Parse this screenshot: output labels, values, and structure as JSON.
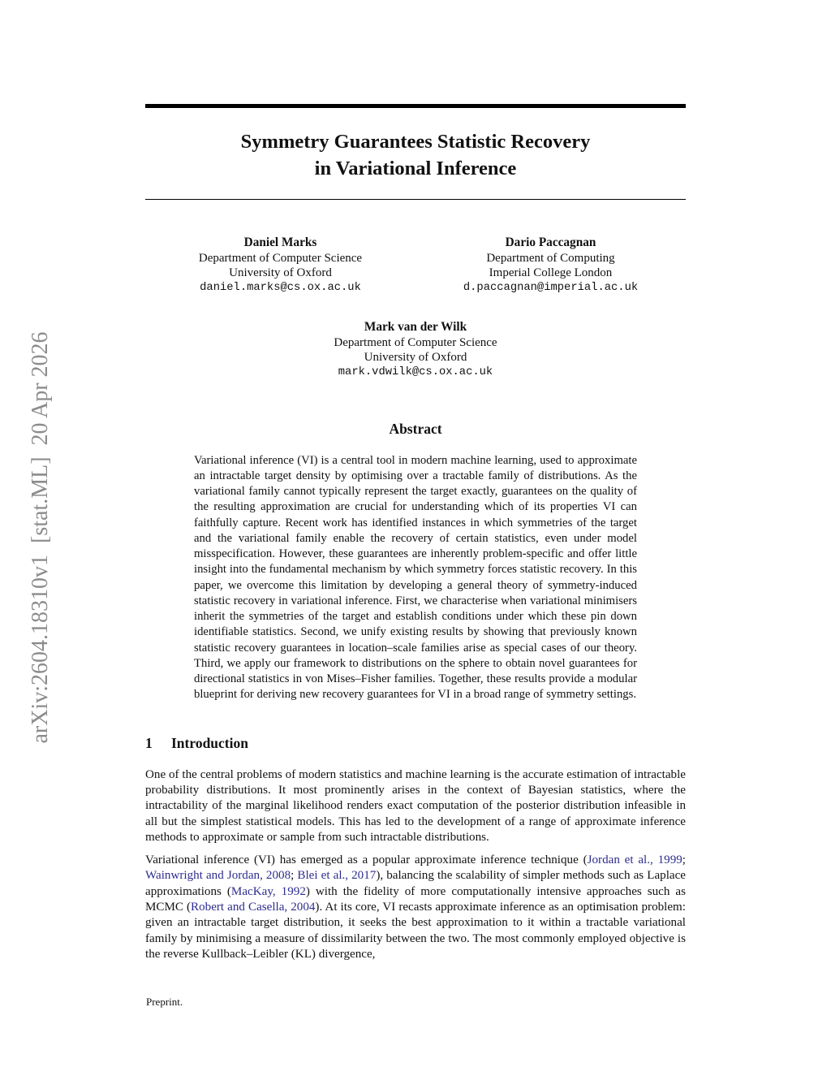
{
  "colors": {
    "link": "#2d2d8f",
    "sidebar_text": "#8c8c8c",
    "rule": "#000000"
  },
  "sidebar": {
    "arxiv_label": "arXiv:2604.18310v1  [stat.ML]  20 Apr 2026"
  },
  "title": {
    "line1": "Symmetry Guarantees Statistic Recovery",
    "line2": "in Variational Inference"
  },
  "authors": [
    {
      "name": "Daniel Marks",
      "affil1": "Department of Computer Science",
      "affil2": "University of Oxford",
      "email": "daniel.marks@cs.ox.ac.uk"
    },
    {
      "name": "Dario Paccagnan",
      "affil1": "Department of Computing",
      "affil2": "Imperial College London",
      "email": "d.paccagnan@imperial.ac.uk"
    },
    {
      "name": "Mark van der Wilk",
      "affil1": "Department of Computer Science",
      "affil2": "University of Oxford",
      "email": "mark.vdwilk@cs.ox.ac.uk"
    }
  ],
  "abstract": {
    "heading": "Abstract",
    "text": "Variational inference (VI) is a central tool in modern machine learning, used to approximate an intractable target density by optimising over a tractable family of distributions. As the variational family cannot typically represent the target exactly, guarantees on the quality of the resulting approximation are crucial for understanding which of its properties VI can faithfully capture. Recent work has identified instances in which symmetries of the target and the variational family enable the recovery of certain statistics, even under model misspecification. However, these guarantees are inherently problem-specific and offer little insight into the fundamental mechanism by which symmetry forces statistic recovery. In this paper, we overcome this limitation by developing a general theory of symmetry-induced statistic recovery in variational inference. First, we characterise when variational minimisers inherit the symmetries of the target and establish conditions under which these pin down identifiable statistics. Second, we unify existing results by showing that previously known statistic recovery guarantees in location–scale families arise as special cases of our theory. Third, we apply our framework to distributions on the sphere to obtain novel guarantees for directional statistics in von Mises–Fisher families. Together, these results provide a modular blueprint for deriving new recovery guarantees for VI in a broad range of symmetry settings."
  },
  "introduction": {
    "heading_number": "1",
    "heading_text": "Introduction",
    "para1": "One of the central problems of modern statistics and machine learning is the accurate estimation of intractable probability distributions. It most prominently arises in the context of Bayesian statistics, where the intractability of the marginal likelihood renders exact computation of the posterior distribution infeasible in all but the simplest statistical models. This has led to the development of a range of approximate inference methods to approximate or sample from such intractable distributions.",
    "para2_segments": [
      {
        "text": "Variational inference (VI) has emerged as a popular approximate inference technique (",
        "link": false
      },
      {
        "text": "Jordan et al., 1999",
        "link": true
      },
      {
        "text": "; ",
        "link": false
      },
      {
        "text": "Wainwright and Jordan, 2008",
        "link": true
      },
      {
        "text": "; ",
        "link": false
      },
      {
        "text": "Blei et al., 2017",
        "link": true
      },
      {
        "text": "), balancing the scalability of simpler methods such as Laplace approximations (",
        "link": false
      },
      {
        "text": "MacKay, 1992",
        "link": true
      },
      {
        "text": ") with the fidelity of more computationally intensive approaches such as MCMC (",
        "link": false
      },
      {
        "text": "Robert and Casella, 2004",
        "link": true
      },
      {
        "text": "). At its core, VI recasts approximate inference as an optimisation problem: given an intractable target distribution, it seeks the best approximation to it within a tractable variational family by minimising a measure of dissimilarity between the two. The most commonly employed objective is the reverse Kullback–Leibler (KL) divergence,",
        "link": false
      }
    ]
  },
  "footer": {
    "note": "Preprint."
  }
}
